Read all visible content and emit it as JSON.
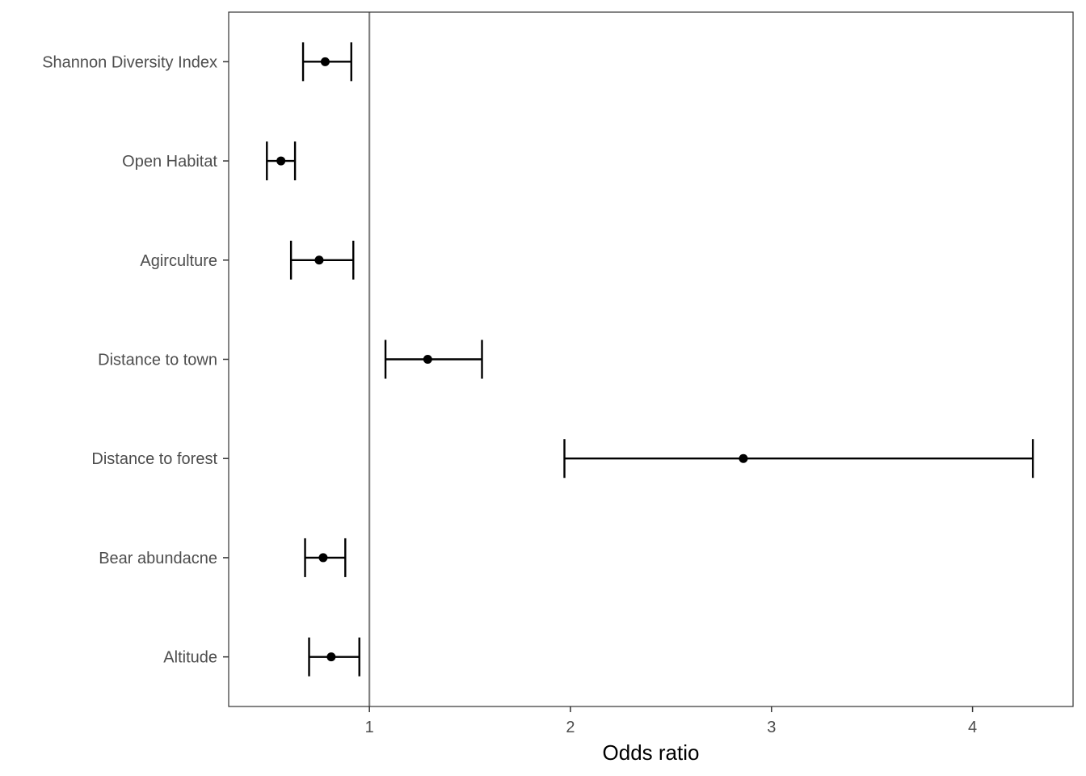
{
  "chart_data": {
    "type": "forest",
    "title": "",
    "xlabel": "Odds ratio",
    "ylabel": "",
    "xlim": [
      0.3,
      4.5
    ],
    "xticks": [
      1,
      2,
      3,
      4
    ],
    "reference_line": 1,
    "grid": false,
    "categories": [
      "Shannon Diversity Index",
      "Open Habitat",
      "Agirculture",
      "Distance to town",
      "Distance to forest",
      "Bear abundacne",
      "Altitude"
    ],
    "estimates": [
      0.78,
      0.56,
      0.75,
      1.29,
      2.86,
      0.77,
      0.81
    ],
    "lower": [
      0.67,
      0.49,
      0.61,
      1.08,
      1.97,
      0.68,
      0.7
    ],
    "upper": [
      0.91,
      0.63,
      0.92,
      1.56,
      4.3,
      0.88,
      0.95
    ],
    "colors": {
      "marks": "#000000",
      "reference_line": "#808080",
      "panel_border": "#333333",
      "tick_text": "#4d4d4d"
    }
  }
}
